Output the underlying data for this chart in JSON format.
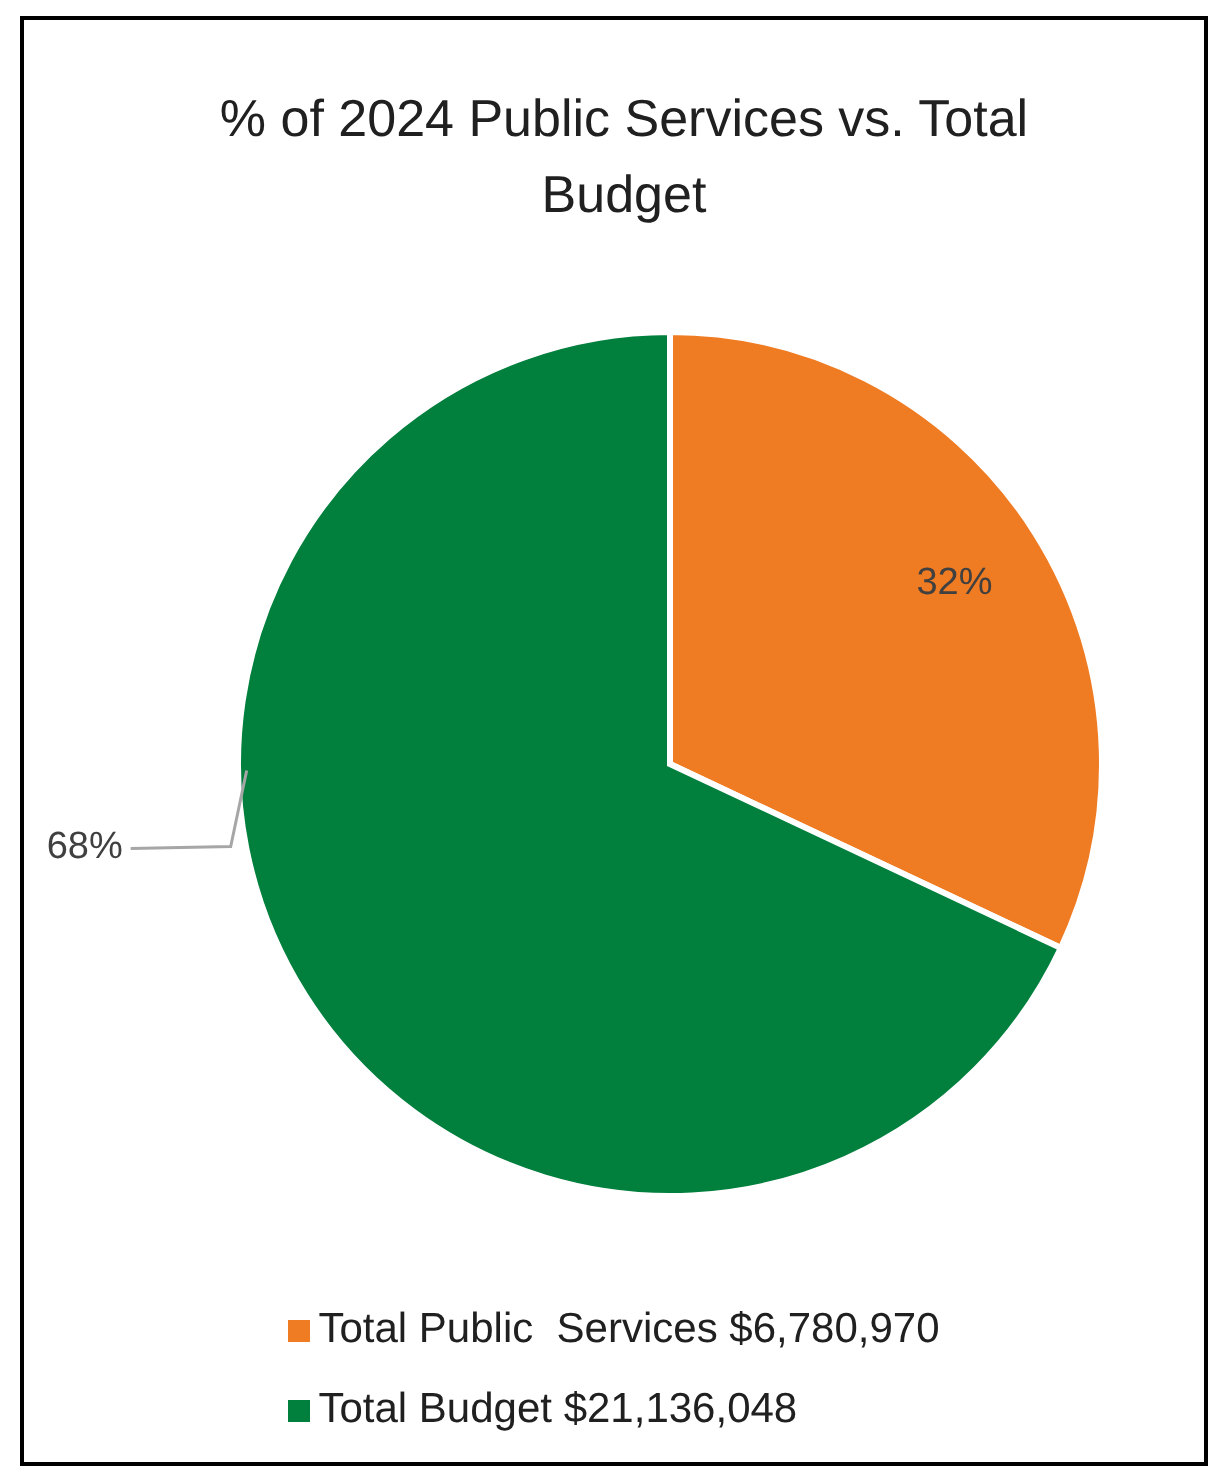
{
  "chart_data": {
    "type": "pie",
    "title": "% of 2024 Public Services vs. Total Budget",
    "categories": [
      "Total Public  Services $6,780,970",
      "Total Budget $21,136,048"
    ],
    "values": [
      32,
      68
    ],
    "colors": [
      "#ef7b22",
      "#007f3d"
    ],
    "value_labels": [
      "32%",
      "68%"
    ],
    "legend": "bottom"
  }
}
